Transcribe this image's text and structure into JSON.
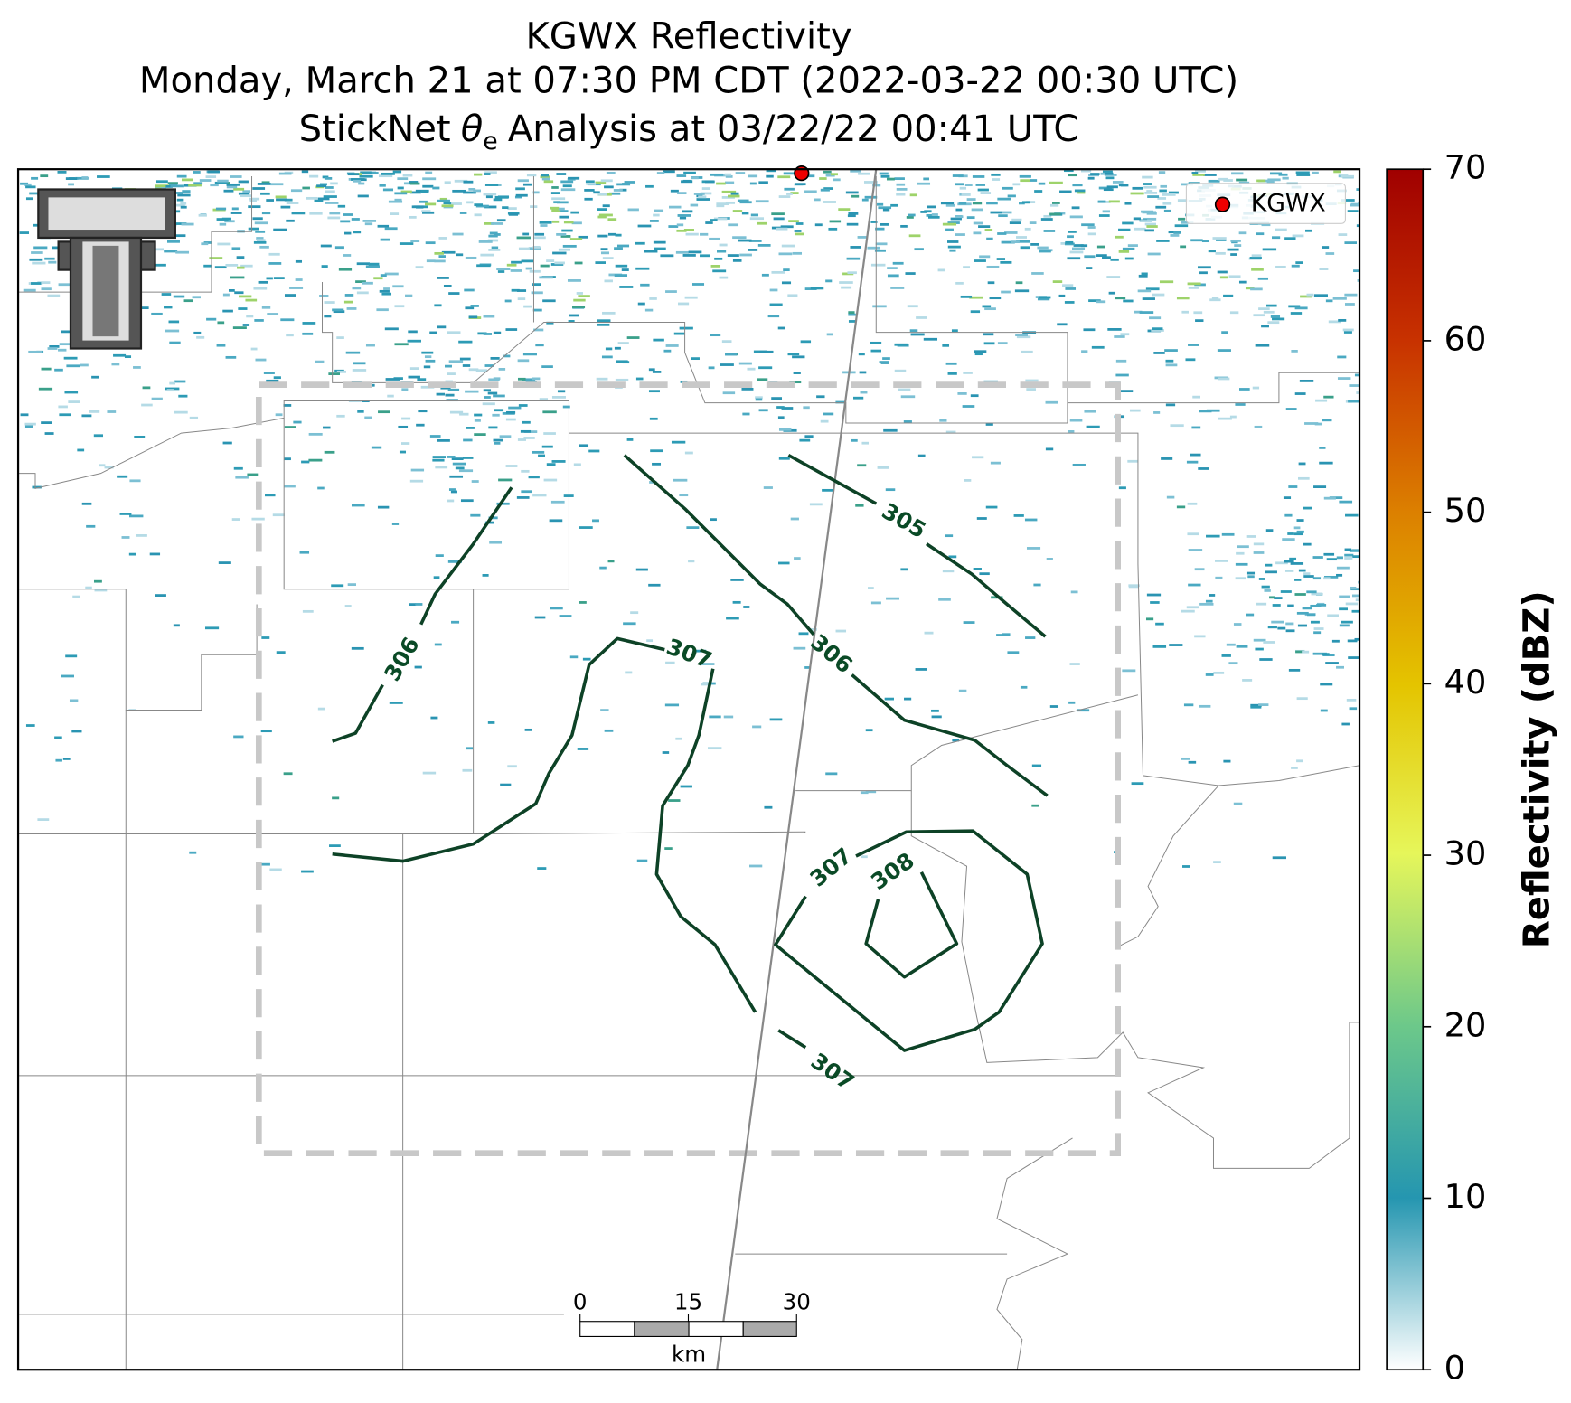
{
  "title": {
    "line1": "KGWX Reflectivity",
    "line2": "Monday, March 21 at 07:30 PM CDT (2022-03-22 00:30 UTC)",
    "line3_prefix": "StickNet",
    "line3_symbol": "θ",
    "line3_subscript": "e",
    "line3_suffix": "Analysis at 03/22/22 00:41 UTC"
  },
  "legend": {
    "label": "KGWX"
  },
  "colorbar": {
    "label": "Reflectivity (dBZ)",
    "lim": [
      0,
      70
    ],
    "ticks": [
      0,
      10,
      20,
      30,
      40,
      50,
      60,
      70
    ]
  },
  "contours": [
    {
      "level": 305
    },
    {
      "level": 306
    },
    {
      "level": 306
    },
    {
      "level": 307
    },
    {
      "level": 307
    },
    {
      "level": 307
    },
    {
      "level": 308
    }
  ],
  "contour_labels": [
    305,
    306,
    306,
    307,
    307,
    307,
    308
  ],
  "scale_bar": {
    "ticks": [
      0,
      15,
      30
    ],
    "unit": "km"
  }
}
